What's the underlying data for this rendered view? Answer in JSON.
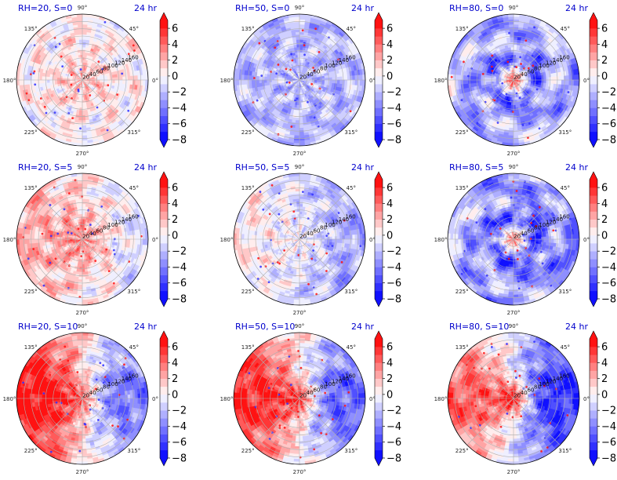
{
  "figure": {
    "time_label": "24 hr"
  },
  "chart_data": {
    "type": "heatmap",
    "projection": "polar",
    "grid": true,
    "angle_tick_labels": [
      "90°",
      "135°",
      "180°",
      "225°",
      "270°",
      "315°",
      "0°",
      "45°"
    ],
    "angle_tick_values_deg": [
      90,
      135,
      180,
      225,
      270,
      315,
      0,
      45
    ],
    "radial_tick_labels": [
      "20",
      "40",
      "60",
      "80",
      "100",
      "120",
      "140",
      "160"
    ],
    "radial_tick_values": [
      20,
      40,
      60,
      80,
      100,
      120,
      140,
      160
    ],
    "rlim": [
      0,
      180
    ],
    "colorbar": {
      "colormap": "bwr",
      "ticks": [
        6,
        4,
        2,
        0,
        -2,
        -4,
        -6,
        -8
      ],
      "tick_labels": [
        "6",
        "4",
        "2",
        "0",
        "−2",
        "−4",
        "−6",
        "−8"
      ],
      "range": [
        -8,
        7
      ],
      "extend": "both",
      "levels": 15
    },
    "colors": {
      "neg_max": "#0000ff",
      "pos_max": "#ff0000",
      "zero": "#ffffff"
    },
    "panels": [
      {
        "title": "RH=20, S=0",
        "row": 0,
        "col": 0,
        "mode": "mixed",
        "core": 1.5,
        "shear": 0,
        "bg": 0.2,
        "seed": 11
      },
      {
        "title": "RH=50, S=0",
        "row": 0,
        "col": 1,
        "mode": "blue",
        "core": 0.0,
        "shear": 0,
        "bg": -1.8,
        "seed": 23
      },
      {
        "title": "RH=80, S=0",
        "row": 0,
        "col": 2,
        "mode": "core",
        "core": 7.0,
        "shear": 0,
        "bg": -2.5,
        "seed": 37
      },
      {
        "title": "RH=20, S=5",
        "row": 1,
        "col": 0,
        "mode": "mixed",
        "core": 2.5,
        "shear": 5,
        "bg": 0.6,
        "seed": 41
      },
      {
        "title": "RH=50, S=5",
        "row": 1,
        "col": 1,
        "mode": "mixed",
        "core": 1.0,
        "shear": 5,
        "bg": -1.2,
        "seed": 53
      },
      {
        "title": "RH=80, S=5",
        "row": 1,
        "col": 2,
        "mode": "core",
        "core": 6.5,
        "shear": 5,
        "bg": -3.0,
        "seed": 67
      },
      {
        "title": "RH=20, S=10",
        "row": 2,
        "col": 0,
        "mode": "split",
        "core": 3.0,
        "shear": 10,
        "bg": 1.2,
        "seed": 71
      },
      {
        "title": "RH=50, S=10",
        "row": 2,
        "col": 1,
        "mode": "split",
        "core": 5.0,
        "shear": 10,
        "bg": 0.5,
        "seed": 83
      },
      {
        "title": "RH=80, S=10",
        "row": 2,
        "col": 2,
        "mode": "split",
        "core": 7.0,
        "shear": 10,
        "bg": -1.0,
        "seed": 97
      }
    ]
  }
}
